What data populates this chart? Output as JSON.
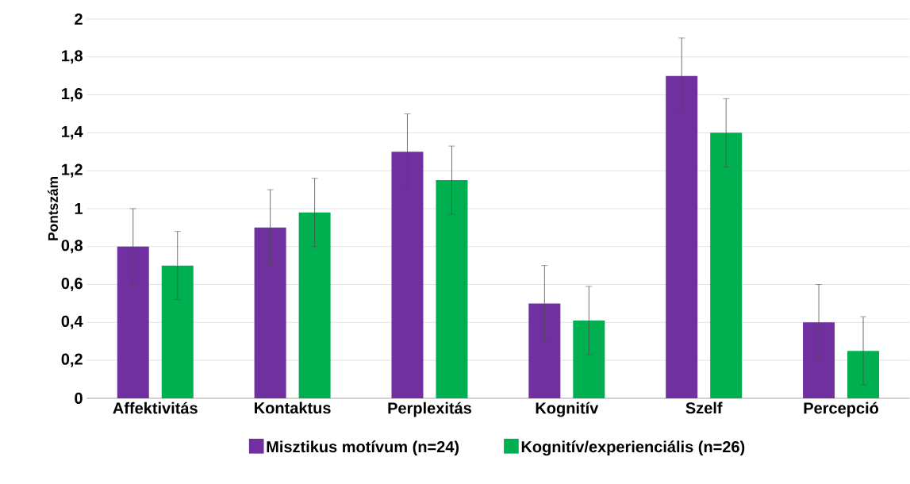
{
  "chart_data": {
    "type": "bar",
    "ylabel": "Pontszám",
    "categories": [
      "Affektivitás",
      "Kontaktus",
      "Perplexitás",
      "Kognitív",
      "Szelf",
      "Percepció"
    ],
    "series": [
      {
        "name": "Misztikus motívum (n=24)",
        "color": "#7030a0",
        "values": [
          0.8,
          0.9,
          1.3,
          0.5,
          1.7,
          0.4
        ],
        "errors": [
          0.2,
          0.2,
          0.2,
          0.2,
          0.2,
          0.2
        ]
      },
      {
        "name": "Kognitív/experienciális (n=26)",
        "color": "#00b050",
        "values": [
          0.7,
          0.98,
          1.15,
          0.41,
          1.4,
          0.25
        ],
        "errors": [
          0.18,
          0.18,
          0.18,
          0.18,
          0.18,
          0.18
        ]
      }
    ],
    "ylim": [
      0,
      2
    ],
    "yticks": [
      0,
      {
        "value": 0.2,
        "label": "0,2"
      },
      {
        "value": 0.4,
        "label": "0,4"
      },
      {
        "value": 0.6,
        "label": "0,6"
      },
      {
        "value": 0.8,
        "label": "0,8"
      },
      1,
      {
        "value": 1.2,
        "label": "1,2"
      },
      {
        "value": 1.4,
        "label": "1,4"
      },
      {
        "value": 1.6,
        "label": "1,6"
      },
      {
        "value": 1.8,
        "label": "1,8"
      },
      2
    ],
    "grid": "y",
    "legend": "bottom"
  }
}
